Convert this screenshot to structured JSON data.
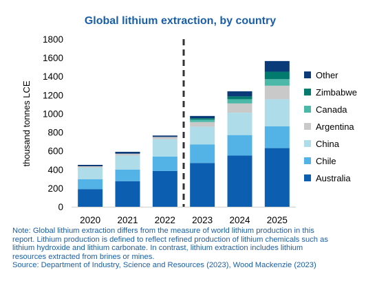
{
  "chart_data": {
    "type": "bar",
    "stacked": true,
    "title": "Global lithium extraction, by country",
    "ylabel": "thousand tonnes LCE",
    "xlabel": "",
    "ylim": [
      0,
      1800
    ],
    "yticks": [
      0,
      200,
      400,
      600,
      800,
      1000,
      1200,
      1400,
      1600,
      1800
    ],
    "categories": [
      "2020",
      "2021",
      "2022",
      "2023",
      "2024",
      "2025"
    ],
    "divider_after": "2022",
    "legend_position": "right",
    "grid": false,
    "series": [
      {
        "name": "Australia",
        "color": "#0c5fb0",
        "values": [
          190,
          275,
          385,
          470,
          550,
          630
        ]
      },
      {
        "name": "Chile",
        "color": "#54b3e6",
        "values": [
          105,
          125,
          155,
          200,
          220,
          235
        ]
      },
      {
        "name": "China",
        "color": "#aedde9",
        "values": [
          125,
          150,
          185,
          190,
          240,
          290
        ]
      },
      {
        "name": "Argentina",
        "color": "#c9c9c9",
        "values": [
          15,
          20,
          25,
          50,
          100,
          145
        ]
      },
      {
        "name": "Canada",
        "color": "#4cb8a8",
        "values": [
          0,
          0,
          0,
          25,
          45,
          70
        ]
      },
      {
        "name": "Zimbabwe",
        "color": "#007b6e",
        "values": [
          0,
          0,
          0,
          15,
          30,
          80
        ]
      },
      {
        "name": "Other",
        "color": "#0b3a78",
        "values": [
          15,
          20,
          15,
          25,
          55,
          115
        ]
      }
    ]
  },
  "note": {
    "lines": [
      "Note: Global lithium extraction differs from the measure of world lithium production in this",
      "report. Lithium production is defined to reflect refined production of lithium chemicals such as",
      "lithium hydroxide and lithium carbonate. In contrast, lithium extraction includes lithium",
      "resources extracted from brines or mines.",
      "Source: Department of Industry, Science and Resources (2023), Wood Mackenzie (2023)"
    ]
  },
  "colors": {
    "title": "#1a5ea8",
    "note": "#1a5ea8",
    "axis_text": "#000000"
  }
}
